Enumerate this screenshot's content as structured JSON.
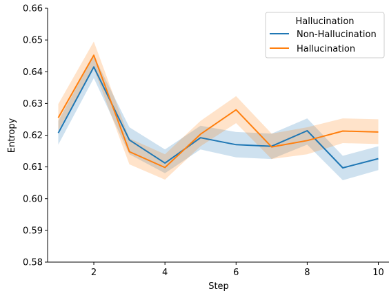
{
  "chart_data": {
    "type": "line",
    "title": "",
    "xlabel": "Step",
    "ylabel": "Entropy",
    "xlim": [
      0.7,
      10.3
    ],
    "ylim": [
      0.58,
      0.66
    ],
    "xticks": [
      2,
      4,
      6,
      8,
      10
    ],
    "yticks": [
      0.58,
      0.59,
      0.6,
      0.61,
      0.62,
      0.63,
      0.64,
      0.65,
      0.66
    ],
    "ytick_labels": [
      "0.58",
      "0.59",
      "0.60",
      "0.61",
      "0.62",
      "0.63",
      "0.64",
      "0.65",
      "0.66"
    ],
    "grid": false,
    "legend": {
      "title": "Hallucination",
      "placement": "top-right"
    },
    "x": [
      1,
      2,
      3,
      4,
      5,
      6,
      7,
      8,
      9,
      10
    ],
    "series": [
      {
        "name": "Non-Hallucination",
        "color": "#1f77b4",
        "values": [
          0.6207,
          0.6415,
          0.6185,
          0.6112,
          0.6192,
          0.617,
          0.6165,
          0.6214,
          0.6097,
          0.6126
        ],
        "band_lower": [
          0.617,
          0.638,
          0.614,
          0.608,
          0.6155,
          0.613,
          0.6125,
          0.617,
          0.6058,
          0.609
        ],
        "band_upper": [
          0.6245,
          0.645,
          0.6225,
          0.6155,
          0.623,
          0.621,
          0.6205,
          0.6253,
          0.6135,
          0.6165
        ]
      },
      {
        "name": "Hallucination",
        "color": "#ff7f0e",
        "values": [
          0.6255,
          0.6452,
          0.6148,
          0.6098,
          0.6203,
          0.628,
          0.6163,
          0.6183,
          0.6213,
          0.621
        ],
        "band_lower": [
          0.6215,
          0.641,
          0.6108,
          0.606,
          0.6165,
          0.6238,
          0.6125,
          0.614,
          0.6175,
          0.6172
        ],
        "band_upper": [
          0.6298,
          0.6495,
          0.619,
          0.614,
          0.6245,
          0.6323,
          0.6205,
          0.6225,
          0.6253,
          0.625
        ]
      }
    ]
  }
}
